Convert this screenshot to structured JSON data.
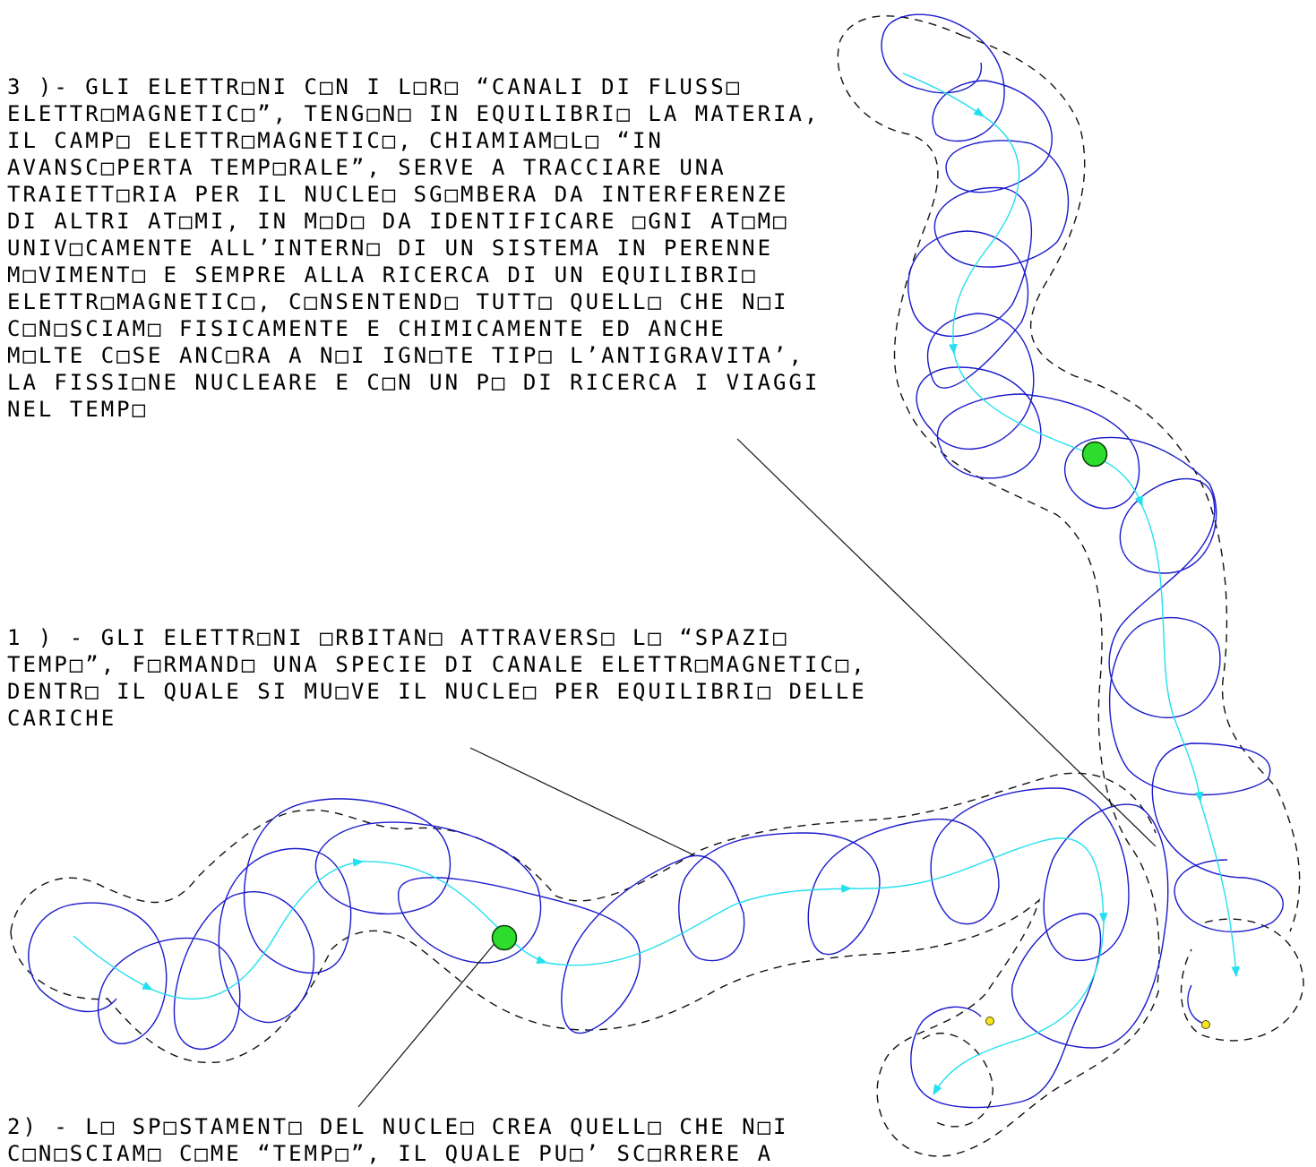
{
  "notes": [
    {
      "id": "note-3",
      "lines": [
        "3 )- GLI ELETTR□NI C□N I L□R□ “CANALI DI FLUSS□",
        "ELETTR□MAGNETIC□”, TENG□N□ IN EQUILIBRI□ LA MATERIA,",
        "IL CAMP□ ELETTR□MAGNETIC□, CHIAMIAM□L□ “IN",
        "AVANSC□PERTA TEMP□RALE”, SERVE A TRACCIARE UNA",
        "TRAIETT□RIA PER IL NUCLE□ SG□MBERA DA INTERFERENZE",
        "DI ALTRI AT□MI, IN M□D□ DA IDENTIFICARE □GNI AT□M□",
        "UNIV□CAMENTE ALL’INTERN□ DI UN SISTEMA IN PERENNE",
        "M□VIMENT□ E SEMPRE ALLA RICERCA DI UN EQUILIBRI□",
        "ELETTR□MAGNETIC□, C□NSENTEND□ TUTT□ QUELL□ CHE N□I",
        "C□N□SCIAM□ FISICAMENTE E CHIMICAMENTE ED ANCHE",
        "M□LTE C□SE ANC□RA A N□I IGN□TE TIP□ L’ANTIGRAVITA’,",
        "LA FISSI□NE NUCLEARE E C□N UN P□ DI RICERCA I VIAGGI",
        "NEL TEMP□"
      ]
    },
    {
      "id": "note-1",
      "lines": [
        "1 ) - GLI ELETTR□NI □RBITAN□ ATTRAVERS□ L□ “SPAZI□",
        "TEMP□”, F□RMAND□ UNA SPECIE DI CANALE ELETTR□MAGNETIC□,",
        "DENTR□ IL QUALE SI MU□VE IL NUCLE□ PER EQUILIBRI□ DELLE",
        "CARICHE"
      ]
    },
    {
      "id": "note-2",
      "lines": [
        "2) - L□ SP□STAMENT□ DEL NUCLE□ CREA QUELL□ CHE N□I",
        "C□N□SCIAM□ C□ME “TEMP□”, IL QUALE PU□’ SC□RRERE A"
      ]
    }
  ],
  "colors": {
    "orbit": "#1a1acc",
    "nucleus_path": "#22e0ee",
    "nucleus_fill": "#2ddc2d",
    "electron_fill": "#f5e61e",
    "channel_outline": "#111111",
    "leader_line": "#111111"
  }
}
